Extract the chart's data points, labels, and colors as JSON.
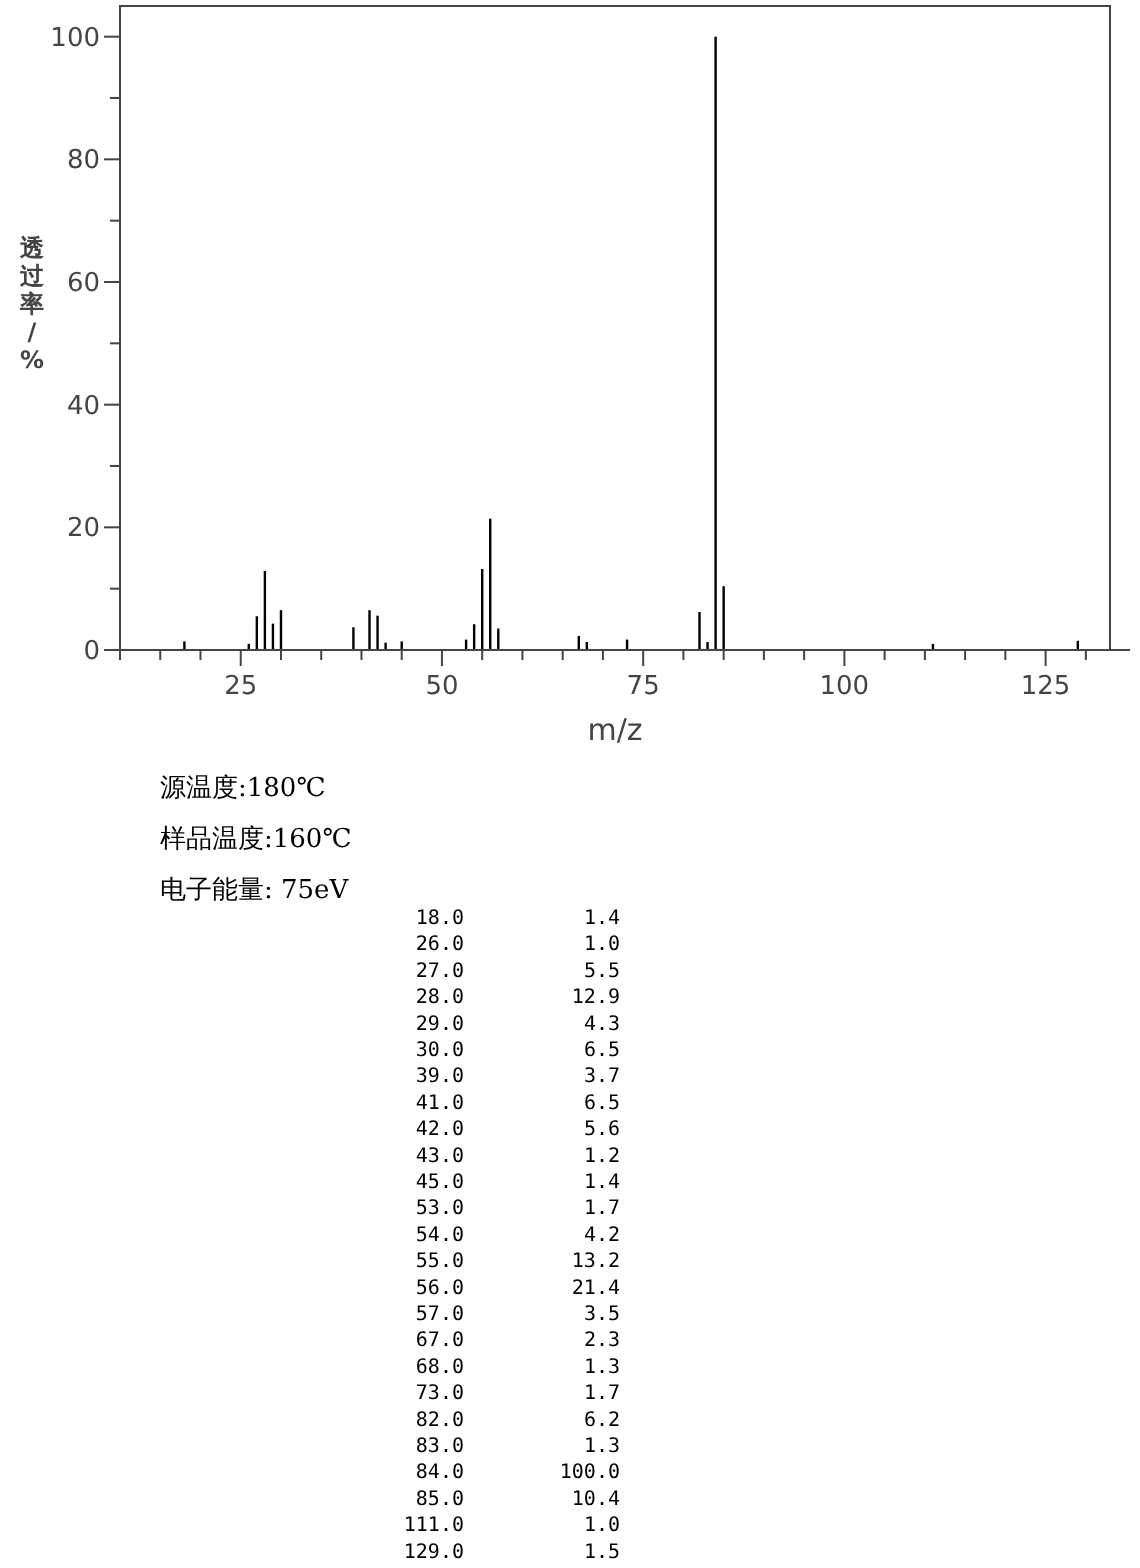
{
  "chart_data": [
    {
      "type": "bar",
      "xlabel": "m/z",
      "ylabel": "透过率/%",
      "x": [
        18,
        26,
        27,
        28,
        29,
        30,
        39,
        41,
        42,
        43,
        45,
        53,
        54,
        55,
        56,
        57,
        67,
        68,
        73,
        82,
        83,
        84,
        85,
        111,
        129
      ],
      "values": [
        1.4,
        1.0,
        5.5,
        12.9,
        4.3,
        6.5,
        3.7,
        6.5,
        5.6,
        1.2,
        1.4,
        1.7,
        4.2,
        13.2,
        21.4,
        3.5,
        2.3,
        1.3,
        1.7,
        6.2,
        1.3,
        100.0,
        10.4,
        1.0,
        1.5
      ],
      "color": "#000000",
      "xlim": [
        10,
        133
      ],
      "xticks": [
        {
          "value": 10,
          "label": null
        },
        {
          "value": 15,
          "label": null
        },
        {
          "value": 20,
          "label": null
        },
        25,
        {
          "value": 30,
          "label": null
        },
        {
          "value": 35,
          "label": null
        },
        {
          "value": 40,
          "label": null
        },
        {
          "value": 45,
          "label": null
        },
        50,
        {
          "value": 55,
          "label": null
        },
        {
          "value": 60,
          "label": null
        },
        {
          "value": 65,
          "label": null
        },
        {
          "value": 70,
          "label": null
        },
        75,
        {
          "value": 80,
          "label": null
        },
        {
          "value": 85,
          "label": null
        },
        {
          "value": 90,
          "label": null
        },
        {
          "value": 95,
          "label": null
        },
        100,
        {
          "value": 105,
          "label": null
        },
        {
          "value": 110,
          "label": null
        },
        {
          "value": 115,
          "label": null
        },
        {
          "value": 120,
          "label": null
        },
        125,
        {
          "value": 130,
          "label": null
        }
      ],
      "ylim": [
        0,
        105
      ],
      "yticks": [
        0,
        {
          "value": 10,
          "label": null
        },
        20,
        {
          "value": 30,
          "label": null
        },
        40,
        {
          "value": 50,
          "label": null
        },
        60,
        {
          "value": 70,
          "label": null
        },
        80,
        {
          "value": 90,
          "label": null
        },
        100
      ],
      "annotations": [
        "源温度:180℃",
        "样品温度:160℃",
        "电子能量: 75eV"
      ]
    },
    {
      "type": "other",
      "annotations": [
        "18.0",
        "1.4",
        "26.0",
        "1.0",
        "27.0",
        "5.5",
        "28.0",
        "12.9",
        "29.0",
        "4.3",
        "30.0",
        "6.5",
        "39.0",
        "3.7",
        "41.0",
        "6.5",
        "42.0",
        "5.6",
        "43.0",
        "1.2",
        "45.0",
        "1.4",
        "53.0",
        "1.7",
        "54.0",
        "4.2",
        "55.0",
        "13.2",
        "56.0",
        "21.4",
        "57.0",
        "3.5",
        "67.0",
        "2.3",
        "68.0",
        "1.3",
        "73.0",
        "1.7",
        "82.0",
        "6.2",
        "83.0",
        "1.3",
        "84.0",
        "100.0",
        "85.0",
        "10.4",
        "111.0",
        "1.0",
        "129.0",
        "1.5"
      ]
    }
  ]
}
